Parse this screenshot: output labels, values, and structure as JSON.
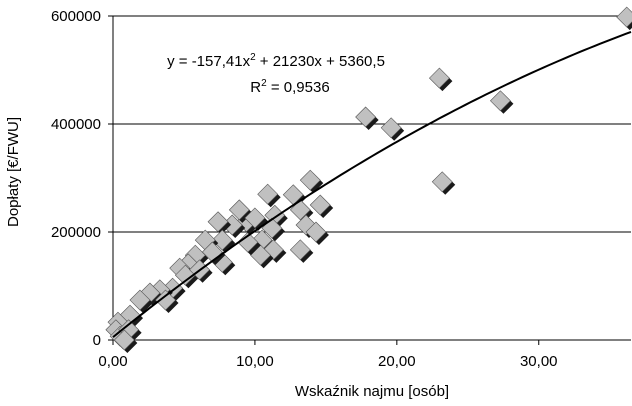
{
  "chart_data": {
    "type": "scatter",
    "y_label": "Dopłaty [€/FWU]",
    "x_label": "Wskaźnik najmu [osób]",
    "equation": [
      "y = -157,41x",
      "2",
      " + 21230x + 5360,5"
    ],
    "r_squared": [
      "R",
      "2",
      " = 0,9536"
    ],
    "trendline": {
      "type": "polynomial",
      "coefficients": [
        -157.41,
        21230,
        5360.5
      ],
      "color": "#000000"
    },
    "marker_color": "#c0c0c0",
    "shadow_color": "#1a1a1a",
    "grid": true,
    "xlim": [
      0,
      36.5
    ],
    "ylim": [
      0,
      600000
    ],
    "xticks": [
      {
        "value": 0,
        "label": "0,00"
      },
      {
        "value": 10,
        "label": "10,00"
      },
      {
        "value": 20,
        "label": "20,00"
      },
      {
        "value": 30,
        "label": "30,00"
      }
    ],
    "yticks": [
      0,
      200000,
      400000,
      600000
    ],
    "x": [
      36.2,
      23.0,
      27.3,
      23.2,
      17.8,
      19.6,
      13.9,
      12.7,
      10.9,
      14.6,
      13.2,
      13.6,
      14.3,
      11.4,
      11.2,
      10.5,
      11.3,
      10.4,
      9.5,
      9.4,
      8.4,
      7.4,
      7.7,
      7.7,
      6.5,
      5.8,
      5.3,
      4.7,
      5.1,
      4.2,
      3.3,
      2.6,
      1.9,
      1.2,
      0.35,
      0.2,
      0.5,
      1.1,
      0.8,
      8.9,
      10.0,
      7.0,
      6.1,
      3.7,
      13.2
    ],
    "values": [
      598000,
      485000,
      443000,
      293000,
      413000,
      393000,
      296000,
      269000,
      270000,
      250000,
      241000,
      213000,
      200000,
      231000,
      207000,
      185000,
      167000,
      157000,
      181000,
      219000,
      213000,
      219000,
      185000,
      144000,
      185000,
      157000,
      141000,
      133000,
      120000,
      96000,
      93000,
      87000,
      74000,
      46000,
      33000,
      19000,
      7000,
      19000,
      0,
      241000,
      226000,
      163000,
      130000,
      74000,
      167000
    ]
  }
}
